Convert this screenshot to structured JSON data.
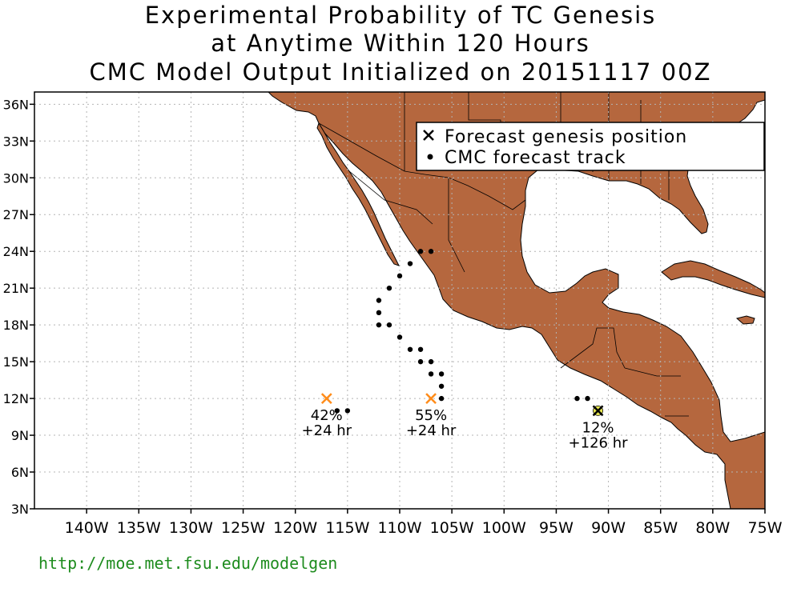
{
  "title": {
    "line1": "Experimental Probability of TC Genesis",
    "line2": "at Anytime Within 120 Hours",
    "line3": "CMC Model Output Initialized on 20151117 00Z"
  },
  "legend": {
    "genesis_label": "Forecast genesis position",
    "track_label": "CMC forecast track"
  },
  "footer_url": "http://moe.met.fsu.edu/modelgen",
  "colors": {
    "land": "#b5673e",
    "ocean": "#ffffff",
    "grid": "#b4b4b4",
    "marker_orange": "#ff8c1a",
    "marker_yellow": "#e6e650"
  },
  "map": {
    "lon_range": [
      -145,
      -75
    ],
    "lat_range": [
      3,
      37
    ],
    "lon_ticks": [
      {
        "value": -140,
        "label": "140W"
      },
      {
        "value": -135,
        "label": "135W"
      },
      {
        "value": -130,
        "label": "130W"
      },
      {
        "value": -125,
        "label": "125W"
      },
      {
        "value": -120,
        "label": "120W"
      },
      {
        "value": -115,
        "label": "115W"
      },
      {
        "value": -110,
        "label": "110W"
      },
      {
        "value": -105,
        "label": "105W"
      },
      {
        "value": -100,
        "label": "100W"
      },
      {
        "value": -95,
        "label": "95W"
      },
      {
        "value": -90,
        "label": "90W"
      },
      {
        "value": -85,
        "label": "85W"
      },
      {
        "value": -80,
        "label": "80W"
      },
      {
        "value": -75,
        "label": "75W"
      }
    ],
    "lat_ticks": [
      {
        "value": 3,
        "label": "3N"
      },
      {
        "value": 6,
        "label": "6N"
      },
      {
        "value": 9,
        "label": "9N"
      },
      {
        "value": 12,
        "label": "12N"
      },
      {
        "value": 15,
        "label": "15N"
      },
      {
        "value": 18,
        "label": "18N"
      },
      {
        "value": 21,
        "label": "21N"
      },
      {
        "value": 24,
        "label": "24N"
      },
      {
        "value": 27,
        "label": "27N"
      },
      {
        "value": 30,
        "label": "30N"
      },
      {
        "value": 33,
        "label": "33N"
      },
      {
        "value": 36,
        "label": "36N"
      }
    ],
    "genesis": [
      {
        "lon": -117,
        "lat": 12,
        "prob": "42%",
        "lead": "+24 hr",
        "color": "orange"
      },
      {
        "lon": -107,
        "lat": 12,
        "prob": "55%",
        "lead": "+24 hr",
        "color": "orange"
      },
      {
        "lon": -91,
        "lat": 11,
        "prob": "12%",
        "lead": "+126 hr",
        "color": "yellow"
      }
    ],
    "tracks": [
      [
        [
          -116,
          11
        ],
        [
          -115,
          11
        ]
      ],
      [
        [
          -106,
          12
        ],
        [
          -106,
          13
        ],
        [
          -106,
          14
        ],
        [
          -107,
          14
        ],
        [
          -107,
          15
        ],
        [
          -108,
          15
        ],
        [
          -108,
          16
        ],
        [
          -109,
          16
        ],
        [
          -110,
          17
        ],
        [
          -111,
          18
        ],
        [
          -112,
          18
        ],
        [
          -112,
          19
        ],
        [
          -112,
          20
        ],
        [
          -111,
          21
        ],
        [
          -110,
          22
        ],
        [
          -109,
          23
        ],
        [
          -108,
          24
        ],
        [
          -107,
          24
        ]
      ],
      [
        [
          -92,
          12
        ],
        [
          -93,
          12
        ]
      ]
    ]
  }
}
